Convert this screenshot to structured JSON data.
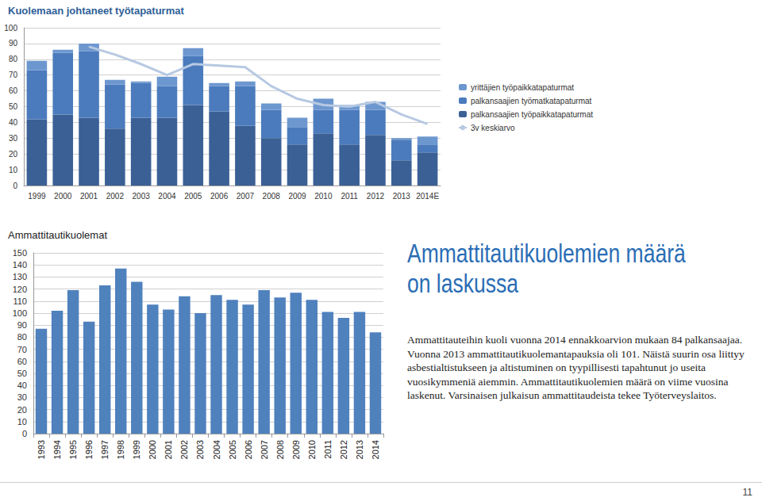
{
  "chart_data": [
    {
      "type": "bar",
      "title": "Kuolemaan johtaneet työtapaturmat",
      "categories": [
        "1999",
        "2000",
        "2001",
        "2002",
        "2003",
        "2004",
        "2005",
        "2006",
        "2007",
        "2008",
        "2009",
        "2010",
        "2011",
        "2012",
        "2013",
        "2014E"
      ],
      "series": [
        {
          "name": "yrittäjien työpaikkatapaturmat",
          "type": "bar",
          "color": "#6d97cf",
          "values": [
            6,
            2,
            5,
            3,
            1,
            6,
            5,
            2,
            3,
            4,
            6,
            7,
            3,
            5,
            1,
            5
          ]
        },
        {
          "name": "palkansaajien työmatkatapaturmat",
          "type": "bar",
          "color": "#4b7bbd",
          "values": [
            31,
            39,
            42,
            28,
            22,
            20,
            31,
            16,
            25,
            18,
            11,
            15,
            22,
            16,
            13,
            5
          ]
        },
        {
          "name": "palkansaajien työpaikkatapaturmat",
          "type": "bar",
          "color": "#3b6096",
          "values": [
            42,
            45,
            43,
            36,
            43,
            43,
            51,
            47,
            38,
            30,
            26,
            33,
            26,
            32,
            16,
            21
          ]
        },
        {
          "name": "3v keskiarvo",
          "type": "line",
          "color": "#b7c9e2",
          "values": [
            null,
            null,
            88,
            83,
            77,
            70,
            77,
            76,
            75,
            63,
            55,
            51,
            50,
            53,
            45,
            39
          ]
        }
      ],
      "stacked": true,
      "ylim": [
        0,
        100
      ],
      "yticks": [
        0,
        10,
        20,
        30,
        40,
        50,
        60,
        70,
        80,
        90,
        100
      ],
      "grid": true,
      "legend": "right"
    },
    {
      "type": "bar",
      "title": "Ammattitautikuolemat",
      "categories": [
        "1993",
        "1994",
        "1995",
        "1996",
        "1997",
        "1998",
        "1999",
        "2000",
        "2001",
        "2002",
        "2003",
        "2004",
        "2005",
        "2006",
        "2007",
        "2008",
        "2009",
        "2010",
        "2011",
        "2012",
        "2013",
        "2014"
      ],
      "values": [
        87,
        102,
        119,
        93,
        123,
        137,
        126,
        107,
        103,
        114,
        100,
        115,
        111,
        107,
        119,
        113,
        117,
        111,
        101,
        96,
        101,
        84
      ],
      "color": "#4f81bd",
      "ylim": [
        0,
        150
      ],
      "yticks": [
        0,
        10,
        20,
        30,
        40,
        50,
        60,
        70,
        80,
        90,
        100,
        110,
        120,
        130,
        140,
        150
      ],
      "grid": true
    }
  ],
  "text": {
    "heading": [
      "Ammattitautikuolemien määrä",
      "on laskussa"
    ],
    "paragraph": "Ammattitauteihin kuoli vuonna 2014 ennakkoarvion mukaan 84 palkansaajaa. Vuonna 2013 ammattitautikuolemantapauksia oli 101. Näistä suurin osa liittyy asbestialtistukseen ja altistuminen on tyypillisesti tapahtunut jo useita vuosikymmeniä aiemmin. Ammattitautikuolemien määrä on viime vuosina laskenut. Varsinaisen julkaisun ammattitaudeista tekee Työterveyslaitos.",
    "page_number": "11"
  }
}
